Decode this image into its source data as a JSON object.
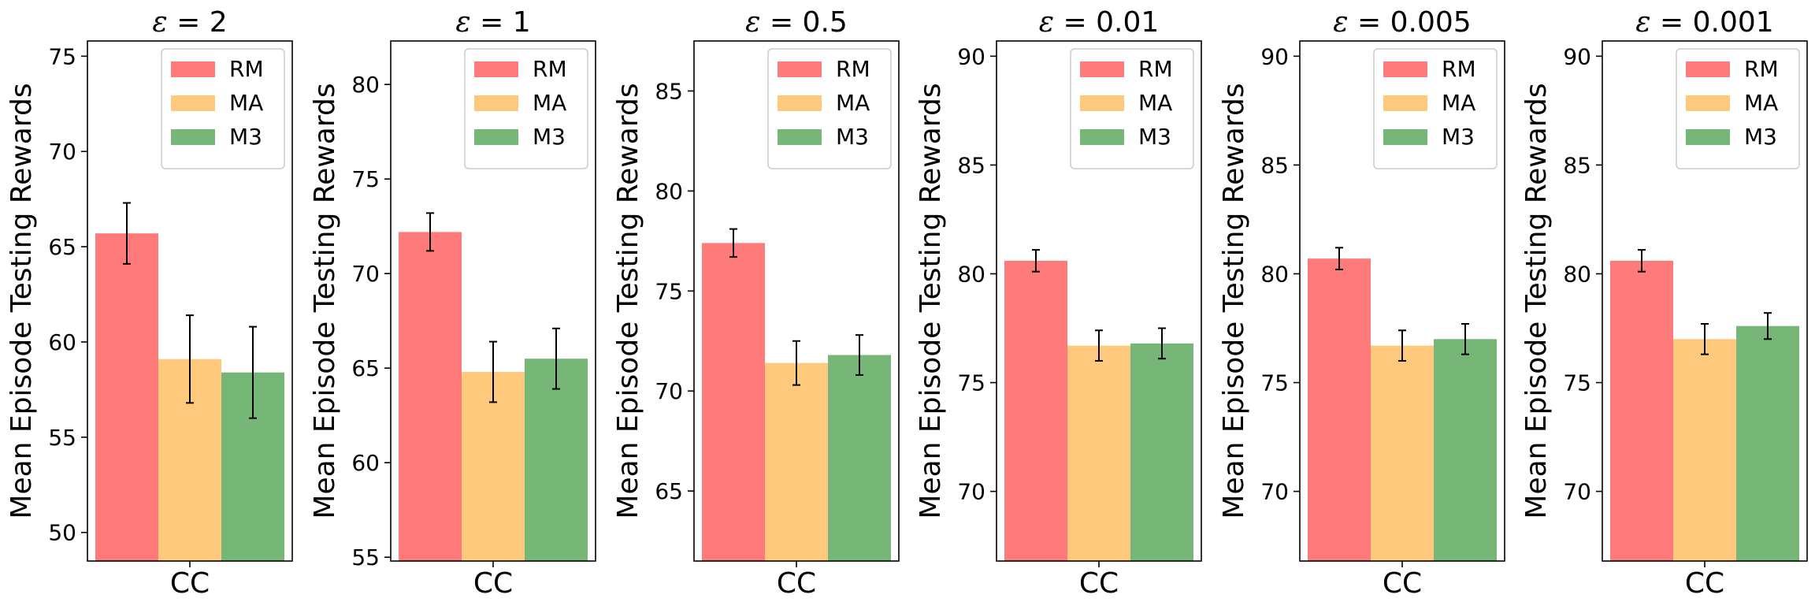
{
  "chart_data": [
    {
      "type": "bar",
      "title_symbol": "ε",
      "title_value": "= 2",
      "categories": [
        "CC"
      ],
      "ylabel": "Mean Episode Testing Rewards",
      "ylim": [
        48.5,
        75.8
      ],
      "yticks": [
        50,
        55,
        60,
        65,
        70,
        75
      ],
      "legend_loc": "upper-right",
      "series": [
        {
          "name": "RM",
          "values": [
            65.7
          ],
          "errors": [
            1.6
          ],
          "color": "#ff7b7b"
        },
        {
          "name": "MA",
          "values": [
            59.1
          ],
          "errors": [
            2.3
          ],
          "color": "#ffc97d"
        },
        {
          "name": "M3",
          "values": [
            58.4
          ],
          "errors": [
            2.4
          ],
          "color": "#76b676"
        }
      ]
    },
    {
      "type": "bar",
      "title_symbol": "ε",
      "title_value": "= 1",
      "categories": [
        "CC"
      ],
      "ylabel": "Mean Episode Testing Rewards",
      "ylim": [
        54.8,
        82.3
      ],
      "yticks": [
        55,
        60,
        65,
        70,
        75,
        80
      ],
      "legend_loc": "upper-right",
      "series": [
        {
          "name": "RM",
          "values": [
            72.2
          ],
          "errors": [
            1.0
          ],
          "color": "#ff7b7b"
        },
        {
          "name": "MA",
          "values": [
            64.8
          ],
          "errors": [
            1.6
          ],
          "color": "#ffc97d"
        },
        {
          "name": "M3",
          "values": [
            65.5
          ],
          "errors": [
            1.6
          ],
          "color": "#76b676"
        }
      ]
    },
    {
      "type": "bar",
      "title_symbol": "ε",
      "title_value": "= 0.5",
      "categories": [
        "CC"
      ],
      "ylabel": "Mean Episode Testing Rewards",
      "ylim": [
        61.5,
        87.5
      ],
      "yticks": [
        65,
        70,
        75,
        80,
        85
      ],
      "legend_loc": "upper-right",
      "series": [
        {
          "name": "RM",
          "values": [
            77.4
          ],
          "errors": [
            0.7
          ],
          "color": "#ff7b7b"
        },
        {
          "name": "MA",
          "values": [
            71.4
          ],
          "errors": [
            1.1
          ],
          "color": "#ffc97d"
        },
        {
          "name": "M3",
          "values": [
            71.8
          ],
          "errors": [
            1.0
          ],
          "color": "#76b676"
        }
      ]
    },
    {
      "type": "bar",
      "title_symbol": "ε",
      "title_value": "= 0.01",
      "categories": [
        "CC"
      ],
      "ylabel": "Mean Episode Testing Rewards",
      "ylim": [
        66.8,
        90.7
      ],
      "yticks": [
        70,
        75,
        80,
        85,
        90
      ],
      "legend_loc": "upper-right",
      "series": [
        {
          "name": "RM",
          "values": [
            80.6
          ],
          "errors": [
            0.5
          ],
          "color": "#ff7b7b"
        },
        {
          "name": "MA",
          "values": [
            76.7
          ],
          "errors": [
            0.7
          ],
          "color": "#ffc97d"
        },
        {
          "name": "M3",
          "values": [
            76.8
          ],
          "errors": [
            0.7
          ],
          "color": "#76b676"
        }
      ]
    },
    {
      "type": "bar",
      "title_symbol": "ε",
      "title_value": "= 0.005",
      "categories": [
        "CC"
      ],
      "ylabel": "Mean Episode Testing Rewards",
      "ylim": [
        66.8,
        90.7
      ],
      "yticks": [
        70,
        75,
        80,
        85,
        90
      ],
      "legend_loc": "upper-right",
      "series": [
        {
          "name": "RM",
          "values": [
            80.7
          ],
          "errors": [
            0.5
          ],
          "color": "#ff7b7b"
        },
        {
          "name": "MA",
          "values": [
            76.7
          ],
          "errors": [
            0.7
          ],
          "color": "#ffc97d"
        },
        {
          "name": "M3",
          "values": [
            77.0
          ],
          "errors": [
            0.7
          ],
          "color": "#76b676"
        }
      ]
    },
    {
      "type": "bar",
      "title_symbol": "ε",
      "title_value": "= 0.001",
      "categories": [
        "CC"
      ],
      "ylabel": "Mean Episode Testing Rewards",
      "ylim": [
        66.8,
        90.7
      ],
      "yticks": [
        70,
        75,
        80,
        85,
        90
      ],
      "legend_loc": "upper-right",
      "series": [
        {
          "name": "RM",
          "values": [
            80.6
          ],
          "errors": [
            0.5
          ],
          "color": "#ff7b7b"
        },
        {
          "name": "MA",
          "values": [
            77.0
          ],
          "errors": [
            0.7
          ],
          "color": "#ffc97d"
        },
        {
          "name": "M3",
          "values": [
            77.6
          ],
          "errors": [
            0.6
          ],
          "color": "#76b676"
        }
      ]
    }
  ]
}
